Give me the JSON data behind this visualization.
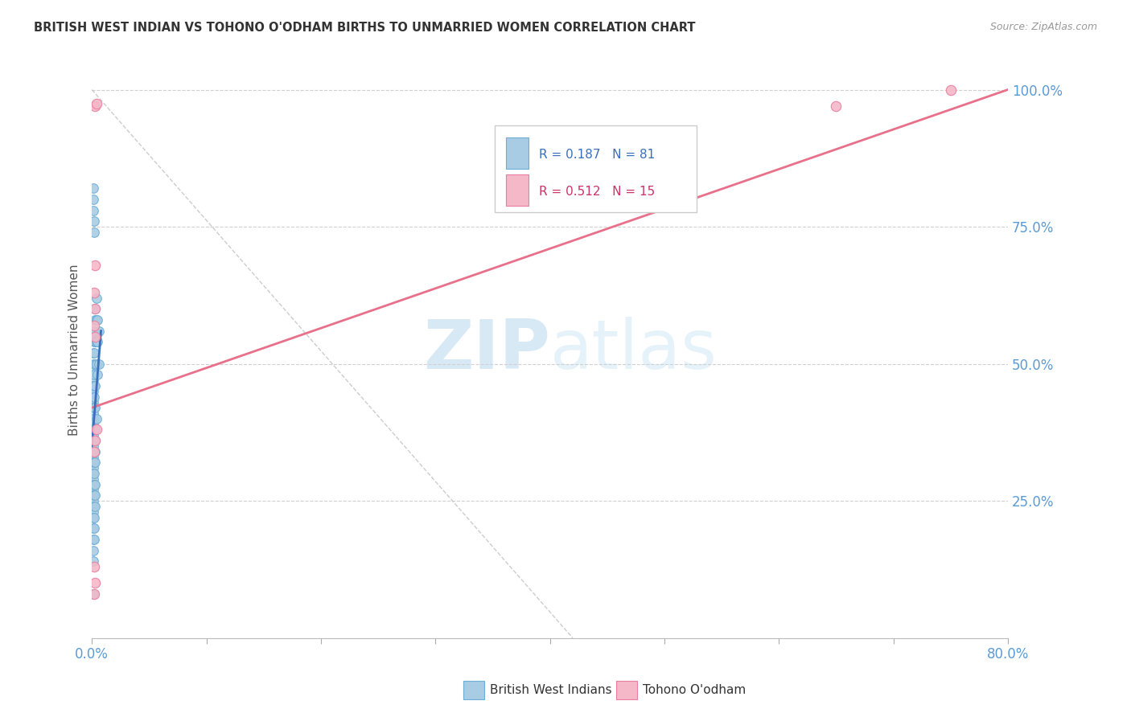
{
  "title": "BRITISH WEST INDIAN VS TOHONO O'ODHAM BIRTHS TO UNMARRIED WOMEN CORRELATION CHART",
  "source": "Source: ZipAtlas.com",
  "ylabel": "Births to Unmarried Women",
  "legend_blue_r": "R = 0.187",
  "legend_blue_n": "N = 81",
  "legend_pink_r": "R = 0.512",
  "legend_pink_n": "N = 15",
  "legend_blue_label": "British West Indians",
  "legend_pink_label": "Tohono O'odham",
  "blue_dot_color": "#a8cce4",
  "blue_dot_edge": "#6baed6",
  "pink_dot_color": "#f4b8c8",
  "pink_dot_edge": "#e87fa0",
  "blue_line_color": "#3a6fbd",
  "pink_line_color": "#e8708a",
  "gray_line_color": "#c0c0c0",
  "axis_tick_color": "#5b9bd5",
  "title_color": "#333333",
  "source_color": "#999999",
  "watermark_color": "#d0e8f5",
  "blue_x": [
    0.001,
    0.001,
    0.001,
    0.001,
    0.001,
    0.001,
    0.001,
    0.001,
    0.001,
    0.001,
    0.001,
    0.001,
    0.001,
    0.001,
    0.001,
    0.001,
    0.001,
    0.001,
    0.001,
    0.001,
    0.001,
    0.001,
    0.002,
    0.002,
    0.002,
    0.002,
    0.002,
    0.002,
    0.002,
    0.002,
    0.002,
    0.002,
    0.002,
    0.003,
    0.003,
    0.003,
    0.003,
    0.003,
    0.003,
    0.003,
    0.003,
    0.004,
    0.004,
    0.004,
    0.004,
    0.005,
    0.005,
    0.005,
    0.006,
    0.006,
    0.001,
    0.001,
    0.001,
    0.001,
    0.001,
    0.001,
    0.001,
    0.001,
    0.002,
    0.002,
    0.002,
    0.002,
    0.003,
    0.003,
    0.003,
    0.004,
    0.001,
    0.001,
    0.001,
    0.001,
    0.002,
    0.002,
    0.002,
    0.003,
    0.003,
    0.001,
    0.001,
    0.001,
    0.002,
    0.002,
    0.001
  ],
  "blue_y": [
    0.55,
    0.52,
    0.5,
    0.48,
    0.47,
    0.46,
    0.45,
    0.44,
    0.43,
    0.42,
    0.41,
    0.4,
    0.39,
    0.38,
    0.37,
    0.36,
    0.35,
    0.34,
    0.33,
    0.32,
    0.31,
    0.3,
    0.56,
    0.54,
    0.52,
    0.48,
    0.46,
    0.44,
    0.42,
    0.4,
    0.38,
    0.36,
    0.34,
    0.6,
    0.58,
    0.54,
    0.5,
    0.46,
    0.42,
    0.38,
    0.34,
    0.62,
    0.58,
    0.54,
    0.5,
    0.58,
    0.54,
    0.48,
    0.56,
    0.5,
    0.29,
    0.28,
    0.27,
    0.26,
    0.25,
    0.24,
    0.23,
    0.22,
    0.32,
    0.3,
    0.28,
    0.26,
    0.36,
    0.32,
    0.28,
    0.4,
    0.2,
    0.18,
    0.16,
    0.14,
    0.22,
    0.2,
    0.18,
    0.26,
    0.24,
    0.82,
    0.8,
    0.78,
    0.76,
    0.74,
    0.08
  ],
  "pink_x": [
    0.003,
    0.004,
    0.002,
    0.003,
    0.002,
    0.003,
    0.004,
    0.003,
    0.002,
    0.003,
    0.002,
    0.003,
    0.002,
    0.65,
    0.75
  ],
  "pink_y": [
    0.97,
    0.975,
    0.63,
    0.6,
    0.57,
    0.55,
    0.38,
    0.36,
    0.34,
    0.1,
    0.08,
    0.68,
    0.13,
    0.97,
    1.0
  ],
  "blue_trend_x0": 0.0,
  "blue_trend_y0": 0.35,
  "blue_trend_x1": 0.008,
  "blue_trend_y1": 0.56,
  "pink_trend_x0": 0.0,
  "pink_trend_y0": 0.42,
  "pink_trend_x1": 0.8,
  "pink_trend_y1": 1.0,
  "gray_trend_x0": 0.0,
  "gray_trend_y0": 1.0,
  "gray_trend_x1": 0.42,
  "gray_trend_y1": 0.0,
  "xmin": 0.0,
  "xmax": 0.8,
  "ymin": 0.0,
  "ymax": 1.05,
  "ytick_vals": [
    0.25,
    0.5,
    0.75,
    1.0
  ],
  "ytick_labels": [
    "25.0%",
    "50.0%",
    "75.0%",
    "100.0%"
  ]
}
